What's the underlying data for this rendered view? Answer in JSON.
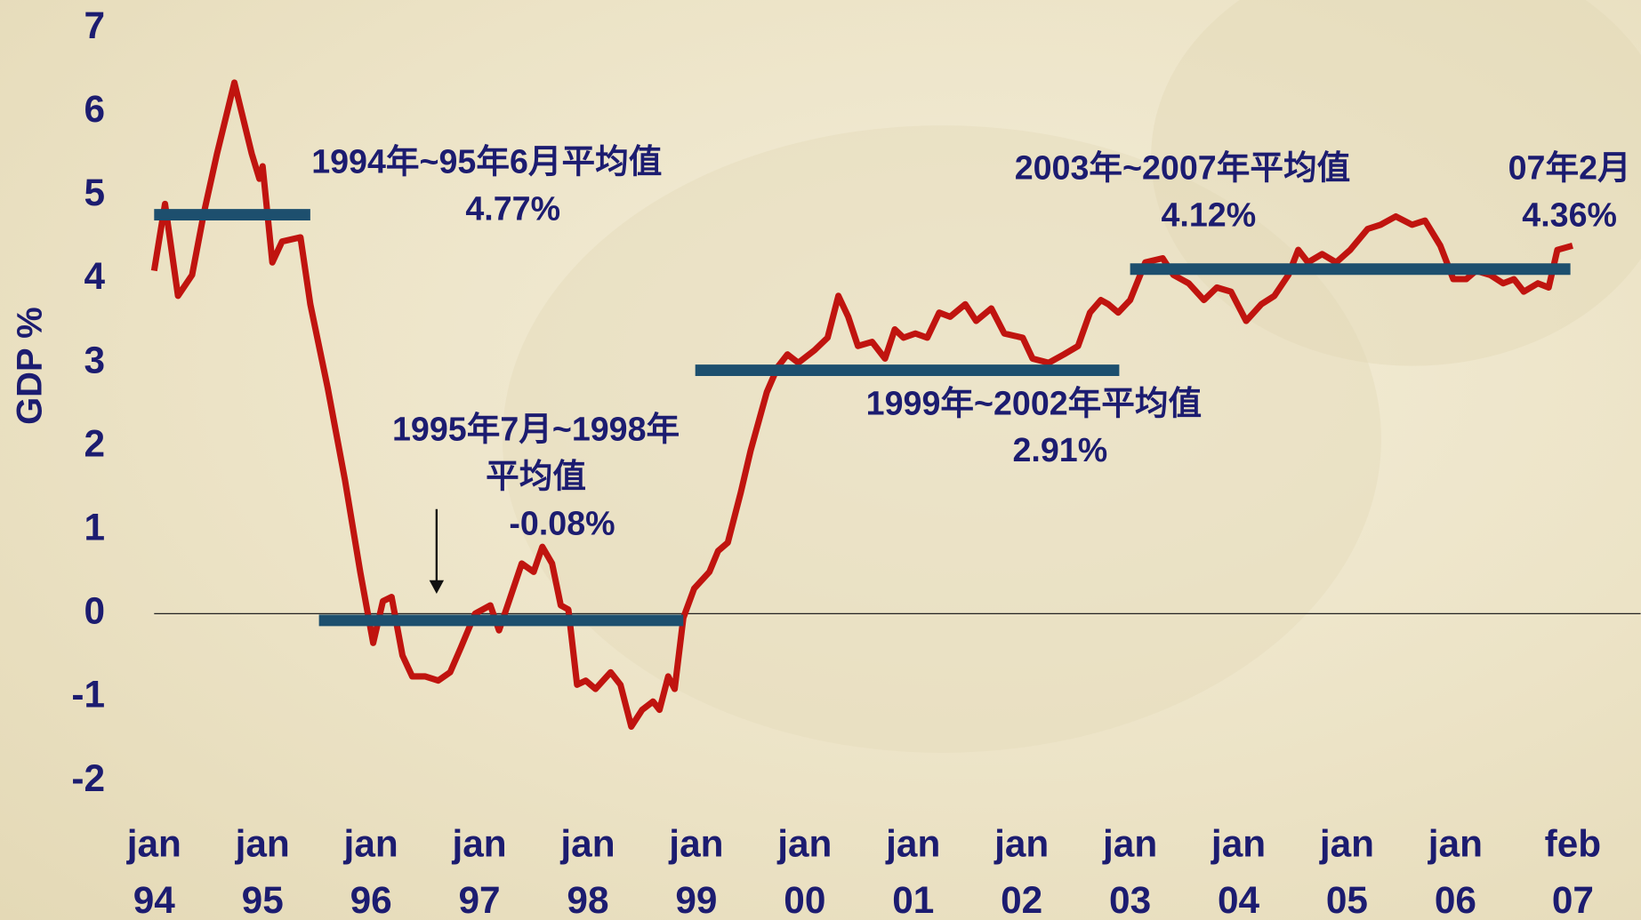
{
  "chart_data": {
    "type": "line",
    "y_label": "GDP %",
    "x": [
      1994.0,
      1994.1,
      1994.22,
      1994.35,
      1994.46,
      1994.58,
      1994.74,
      1994.9,
      1994.97,
      1995.0,
      1995.09,
      1995.18,
      1995.35,
      1995.44,
      1995.6,
      1995.76,
      1995.9,
      1996.02,
      1996.11,
      1996.19,
      1996.29,
      1996.38,
      1996.5,
      1996.62,
      1996.73,
      1996.83,
      1996.96,
      1997.1,
      1997.18,
      1997.26,
      1997.39,
      1997.5,
      1997.58,
      1997.67,
      1997.75,
      1997.82,
      1997.9,
      1997.98,
      1998.07,
      1998.21,
      1998.3,
      1998.4,
      1998.5,
      1998.6,
      1998.66,
      1998.74,
      1998.8,
      1998.88,
      1998.98,
      1999.12,
      1999.2,
      1999.29,
      1999.41,
      1999.5,
      1999.65,
      1999.75,
      1999.84,
      1999.94,
      2000.09,
      2000.21,
      2000.31,
      2000.4,
      2000.49,
      2000.62,
      2000.74,
      2000.83,
      2000.91,
      2001.02,
      2001.13,
      2001.24,
      2001.34,
      2001.48,
      2001.58,
      2001.72,
      2001.84,
      2002.01,
      2002.1,
      2002.25,
      2002.39,
      2002.52,
      2002.63,
      2002.73,
      2002.8,
      2002.89,
      2003.0,
      2003.14,
      2003.3,
      2003.4,
      2003.54,
      2003.68,
      2003.8,
      2003.93,
      2004.07,
      2004.21,
      2004.33,
      2004.46,
      2004.55,
      2004.64,
      2004.77,
      2004.9,
      2005.03,
      2005.19,
      2005.31,
      2005.45,
      2005.6,
      2005.72,
      2005.86,
      2005.98,
      2006.1,
      2006.19,
      2006.32,
      2006.44,
      2006.54,
      2006.63,
      2006.76,
      2006.86,
      2006.94,
      2007.08
    ],
    "series": [
      {
        "color": "#c0140f",
        "values": [
          4.1,
          4.9,
          3.8,
          4.05,
          4.8,
          5.5,
          6.35,
          5.5,
          5.2,
          5.35,
          4.2,
          4.45,
          4.5,
          3.7,
          2.7,
          1.6,
          0.5,
          -0.35,
          0.15,
          0.2,
          -0.5,
          -0.75,
          -0.75,
          -0.8,
          -0.7,
          -0.4,
          0.0,
          0.1,
          -0.2,
          0.1,
          0.6,
          0.5,
          0.8,
          0.6,
          0.1,
          0.05,
          -0.85,
          -0.8,
          -0.9,
          -0.7,
          -0.85,
          -1.35,
          -1.15,
          -1.05,
          -1.15,
          -0.75,
          -0.9,
          -0.05,
          0.3,
          0.5,
          0.75,
          0.85,
          1.45,
          1.95,
          2.65,
          2.95,
          3.1,
          3.0,
          3.15,
          3.3,
          3.8,
          3.55,
          3.2,
          3.25,
          3.05,
          3.4,
          3.3,
          3.35,
          3.3,
          3.6,
          3.55,
          3.7,
          3.5,
          3.65,
          3.35,
          3.3,
          3.05,
          3.0,
          3.1,
          3.2,
          3.6,
          3.75,
          3.7,
          3.6,
          3.75,
          4.2,
          4.25,
          4.05,
          3.95,
          3.75,
          3.9,
          3.85,
          3.5,
          3.7,
          3.8,
          4.05,
          4.35,
          4.2,
          4.3,
          4.2,
          4.35,
          4.6,
          4.65,
          4.75,
          4.65,
          4.7,
          4.4,
          4.0,
          4.0,
          4.1,
          4.05,
          3.95,
          4.0,
          3.85,
          3.95,
          3.9,
          4.35,
          4.4
        ]
      }
    ],
    "reference_lines": [
      {
        "label_lines": [
          "1994年~95年6月平均值"
        ],
        "value": 4.77,
        "value_label": "4.77%",
        "x": [
          1994.0,
          1995.44
        ],
        "color": "#1d4f6e"
      },
      {
        "label_lines": [
          "1995年7月~1998年",
          "平均值"
        ],
        "value": -0.08,
        "value_label": "-0.08%",
        "x": [
          1995.52,
          1998.88
        ],
        "color": "#1d4f6e"
      },
      {
        "label_lines": [
          "1999年~2002年平均值"
        ],
        "value": 2.91,
        "value_label": "2.91%",
        "x": [
          1998.99,
          2002.9
        ],
        "color": "#1d4f6e"
      },
      {
        "label_lines": [
          "2003年~2007年平均值"
        ],
        "value": 4.12,
        "value_label": "4.12%",
        "x": [
          2003.0,
          2007.06
        ],
        "color": "#1d4f6e"
      }
    ],
    "annotation": {
      "lines": [
        "07年2月",
        "4.36%"
      ]
    },
    "xlim": [
      1994,
      2007.1
    ],
    "xticks": [
      {
        "value": 1994,
        "label": "jan 94"
      },
      {
        "value": 1995,
        "label": "jan 95"
      },
      {
        "value": 1996,
        "label": "jan 96"
      },
      {
        "value": 1997,
        "label": "jan 97"
      },
      {
        "value": 1998,
        "label": "jan 98"
      },
      {
        "value": 1999,
        "label": "jan 99"
      },
      {
        "value": 2000,
        "label": "jan 00"
      },
      {
        "value": 2001,
        "label": "jan 01"
      },
      {
        "value": 2002,
        "label": "jan 02"
      },
      {
        "value": 2003,
        "label": "jan 03"
      },
      {
        "value": 2004,
        "label": "jan 04"
      },
      {
        "value": 2005,
        "label": "jan 05"
      },
      {
        "value": 2006,
        "label": "jan 06"
      },
      {
        "value": 2007.083,
        "label": "feb 07"
      }
    ],
    "ylim": [
      -2,
      7
    ],
    "yticks": [
      -2,
      -1,
      0,
      1,
      2,
      3,
      4,
      5,
      6,
      7
    ],
    "zero_line": true
  }
}
